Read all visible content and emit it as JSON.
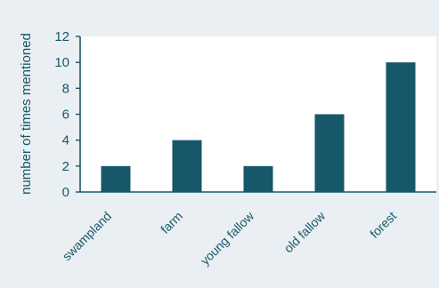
{
  "chart_data": {
    "type": "bar",
    "categories": [
      "swampland",
      "farm",
      "young fallow",
      "old fallow",
      "forest"
    ],
    "values": [
      2,
      4,
      2,
      6,
      10
    ],
    "title": "",
    "xlabel": "",
    "ylabel": "number of times mentioned",
    "ylim": [
      0,
      12
    ],
    "yticks": [
      0,
      2,
      4,
      6,
      8,
      10,
      12
    ],
    "grid": false,
    "legend": "none",
    "colors": {
      "bar": "#17576a",
      "axis": "#17576a",
      "text": "#17576a",
      "background": "#e9eff2"
    }
  }
}
